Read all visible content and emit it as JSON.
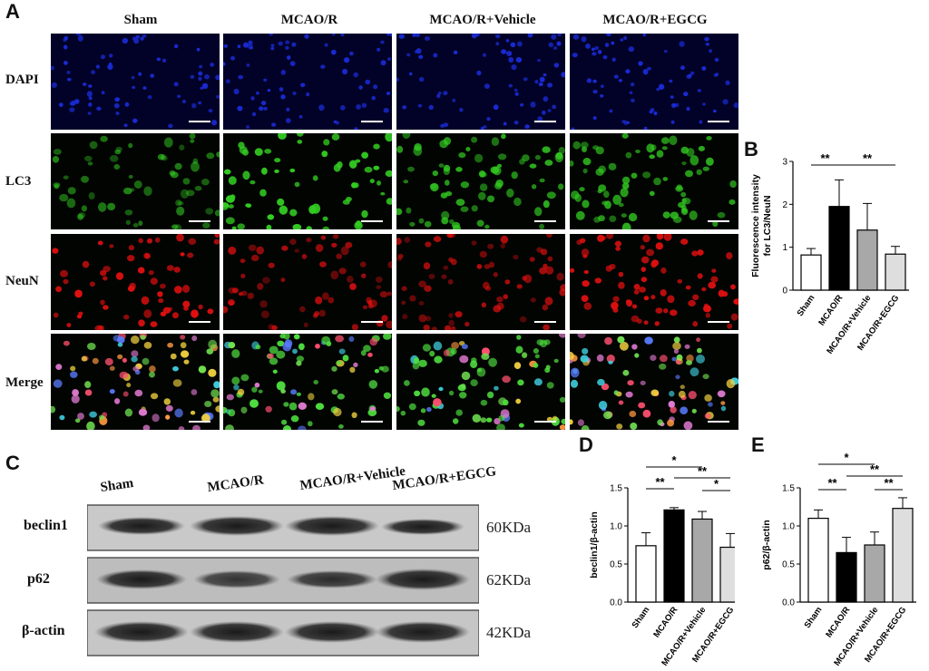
{
  "figure": {
    "panel_labels": {
      "a": "A",
      "b": "B",
      "c": "C",
      "d": "D",
      "e": "E"
    },
    "groups": [
      "Sham",
      "MCAO/R",
      "MCAO/R+Vehicle",
      "MCAO/R+EGCG"
    ],
    "micro_rows": [
      "DAPI",
      "LC3",
      "NeuN",
      "Merge"
    ],
    "western": {
      "bands": [
        {
          "label": "beclin1",
          "kda": "60KDa"
        },
        {
          "label": "p62",
          "kda": "62KDa"
        },
        {
          "label": "β-actin",
          "kda": "42KDa"
        }
      ]
    },
    "colors": {
      "dapi": "#1a2bd6",
      "lc3": "#33cc22",
      "neun": "#e01010",
      "bar_sham": "#ffffff",
      "bar_mcao": "#000000",
      "bar_vehicle": "#a8a8a8",
      "bar_egcg": "#dedede"
    }
  },
  "chart_data": [
    {
      "type": "bar",
      "panel": "B",
      "ylabel": "Fluorescence intensity for LC3/NeuN",
      "categories": [
        "Sham",
        "MCAO/R",
        "MCAO/R+Vehicle",
        "MCAO/R+EGCG"
      ],
      "values": [
        0.82,
        1.95,
        1.4,
        0.84
      ],
      "errors": [
        0.15,
        0.62,
        0.62,
        0.18
      ],
      "ylim": [
        0,
        3
      ],
      "yticks": [
        0,
        1,
        2,
        3
      ],
      "significance": [
        {
          "from": 0,
          "to": 1,
          "label": "**"
        },
        {
          "from": 1,
          "to": 3,
          "label": "**"
        }
      ]
    },
    {
      "type": "bar",
      "panel": "D",
      "ylabel": "beclin1/β-actin",
      "categories": [
        "Sham",
        "MCAO/R",
        "MCAO/R+Vehicle",
        "MCAO/R+EGCG"
      ],
      "values": [
        0.74,
        1.21,
        1.09,
        0.72
      ],
      "errors": [
        0.17,
        0.03,
        0.1,
        0.18
      ],
      "ylim": [
        0,
        1.5
      ],
      "yticks": [
        0.0,
        0.5,
        1.0,
        1.5
      ],
      "significance": [
        {
          "from": 0,
          "to": 2,
          "label": "*"
        },
        {
          "from": 0,
          "to": 1,
          "label": "**"
        },
        {
          "from": 1,
          "to": 3,
          "label": "**"
        },
        {
          "from": 2,
          "to": 3,
          "label": "*"
        }
      ]
    },
    {
      "type": "bar",
      "panel": "E",
      "ylabel": "p62/β-actin",
      "categories": [
        "Sham",
        "MCAO/R",
        "MCAO/R+Vehicle",
        "MCAO/R+EGCG"
      ],
      "values": [
        1.1,
        0.65,
        0.75,
        1.23
      ],
      "errors": [
        0.11,
        0.2,
        0.17,
        0.14
      ],
      "ylim": [
        0,
        1.5
      ],
      "yticks": [
        0.0,
        0.5,
        1.0,
        1.5
      ],
      "significance": [
        {
          "from": 0,
          "to": 2,
          "label": "*"
        },
        {
          "from": 0,
          "to": 1,
          "label": "**"
        },
        {
          "from": 1,
          "to": 3,
          "label": "**"
        },
        {
          "from": 2,
          "to": 3,
          "label": "**"
        }
      ]
    }
  ]
}
